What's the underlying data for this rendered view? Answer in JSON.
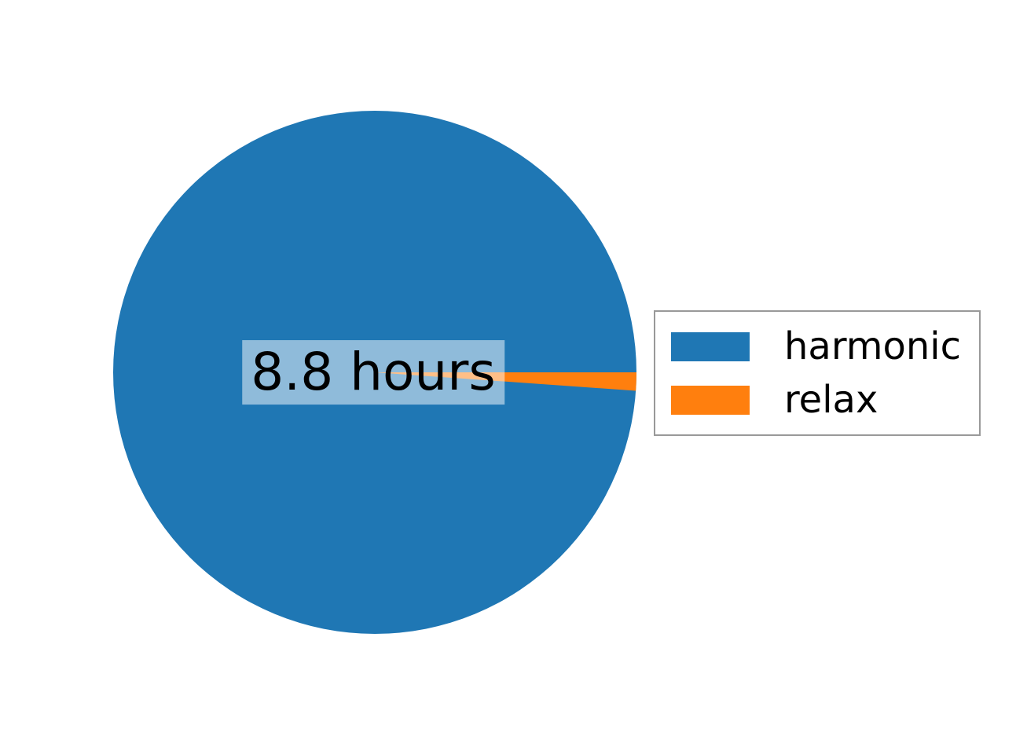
{
  "chart_data": {
    "type": "pie",
    "labels": [
      "harmonic",
      "relax"
    ],
    "values": [
      8.8,
      0.1
    ],
    "unit": "hours",
    "colors": [
      "#1f77b4",
      "#ff7f0e"
    ],
    "title": "",
    "center_label": "8.8 hours",
    "center_label_bg": "rgba(255, 255, 255, 0.5)",
    "startangle": 0,
    "counterclock": true,
    "legend_position": "right",
    "background": "#ffffff"
  },
  "legend": {
    "items": [
      {
        "label": "harmonic",
        "color": "#1f77b4"
      },
      {
        "label": "relax",
        "color": "#ff7f0e"
      }
    ]
  }
}
